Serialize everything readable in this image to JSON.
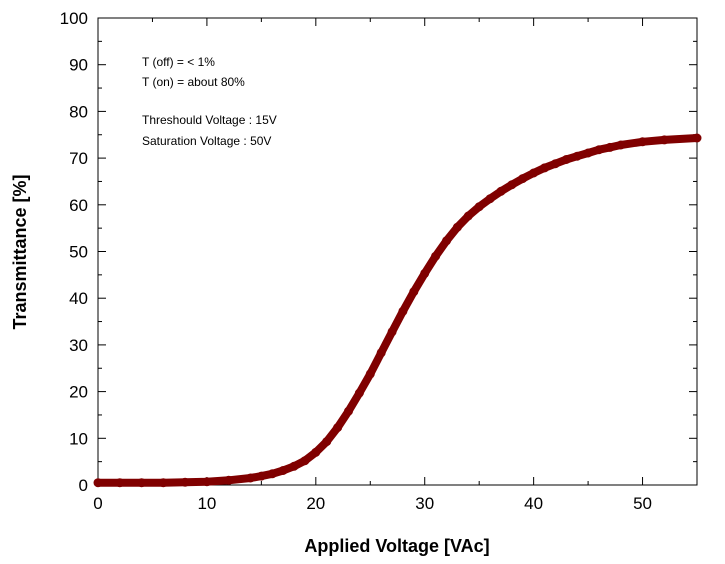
{
  "chart_data": {
    "type": "line",
    "title": "",
    "xlabel": "Applied Voltage [VAc]",
    "ylabel": "Transmittance [%]",
    "xlim": [
      0,
      55
    ],
    "ylim": [
      0,
      100
    ],
    "x_ticks": [
      0,
      10,
      20,
      30,
      40,
      50
    ],
    "y_ticks": [
      0,
      10,
      20,
      30,
      40,
      50,
      60,
      70,
      80,
      90,
      100
    ],
    "grid": false,
    "legend": "none",
    "annotations": [
      "T (off) = < 1%",
      "T (on) = about 80%",
      "Threshould Voltage : 15V",
      "Saturation Voltage : 50V"
    ],
    "series": [
      {
        "color": "#800000",
        "x": [
          0,
          2,
          4,
          6,
          8,
          10,
          12,
          14,
          15,
          16,
          17,
          18,
          19,
          20,
          21,
          22,
          23,
          24,
          25,
          26,
          27,
          28,
          29,
          30,
          31,
          32,
          33,
          34,
          35,
          36,
          37,
          38,
          39,
          40,
          41,
          42,
          43,
          44,
          45,
          46,
          47,
          48,
          50,
          52,
          55
        ],
        "y": [
          0.5,
          0.5,
          0.5,
          0.5,
          0.6,
          0.7,
          1.0,
          1.5,
          1.9,
          2.4,
          3.1,
          4.0,
          5.2,
          7.0,
          9.3,
          12.3,
          15.8,
          19.7,
          23.8,
          28.3,
          32.8,
          37.2,
          41.4,
          45.3,
          49.0,
          52.3,
          55.2,
          57.6,
          59.6,
          61.3,
          62.9,
          64.3,
          65.6,
          66.8,
          67.9,
          68.8,
          69.7,
          70.4,
          71.1,
          71.8,
          72.3,
          72.8,
          73.5,
          73.9,
          74.3
        ]
      }
    ]
  }
}
